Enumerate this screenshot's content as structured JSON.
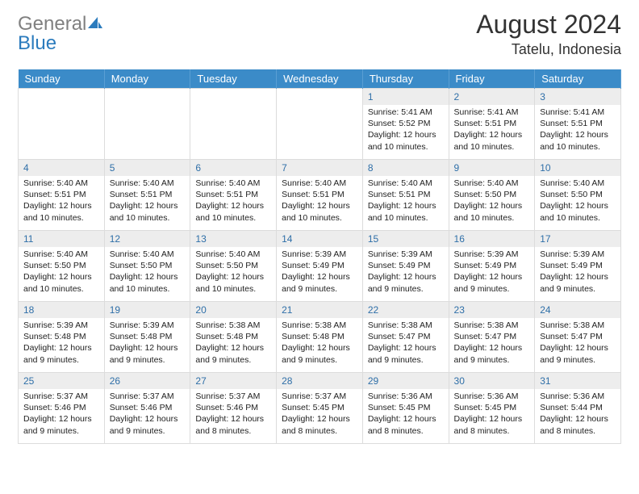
{
  "logo": {
    "textGray": "General",
    "textBlue": "Blue"
  },
  "header": {
    "title": "August 2024",
    "location": "Tatelu, Indonesia"
  },
  "colors": {
    "headerBg": "#3b8bc8",
    "headerText": "#ffffff",
    "dayNumBg": "#ededed",
    "dayNumText": "#2f6fa8",
    "border": "#dcdcdc",
    "bodyText": "#222222"
  },
  "dayNames": [
    "Sunday",
    "Monday",
    "Tuesday",
    "Wednesday",
    "Thursday",
    "Friday",
    "Saturday"
  ],
  "weeks": [
    [
      null,
      null,
      null,
      null,
      {
        "n": "1",
        "sr": "5:41 AM",
        "ss": "5:52 PM",
        "dl": "12 hours and 10 minutes."
      },
      {
        "n": "2",
        "sr": "5:41 AM",
        "ss": "5:51 PM",
        "dl": "12 hours and 10 minutes."
      },
      {
        "n": "3",
        "sr": "5:41 AM",
        "ss": "5:51 PM",
        "dl": "12 hours and 10 minutes."
      }
    ],
    [
      {
        "n": "4",
        "sr": "5:40 AM",
        "ss": "5:51 PM",
        "dl": "12 hours and 10 minutes."
      },
      {
        "n": "5",
        "sr": "5:40 AM",
        "ss": "5:51 PM",
        "dl": "12 hours and 10 minutes."
      },
      {
        "n": "6",
        "sr": "5:40 AM",
        "ss": "5:51 PM",
        "dl": "12 hours and 10 minutes."
      },
      {
        "n": "7",
        "sr": "5:40 AM",
        "ss": "5:51 PM",
        "dl": "12 hours and 10 minutes."
      },
      {
        "n": "8",
        "sr": "5:40 AM",
        "ss": "5:51 PM",
        "dl": "12 hours and 10 minutes."
      },
      {
        "n": "9",
        "sr": "5:40 AM",
        "ss": "5:50 PM",
        "dl": "12 hours and 10 minutes."
      },
      {
        "n": "10",
        "sr": "5:40 AM",
        "ss": "5:50 PM",
        "dl": "12 hours and 10 minutes."
      }
    ],
    [
      {
        "n": "11",
        "sr": "5:40 AM",
        "ss": "5:50 PM",
        "dl": "12 hours and 10 minutes."
      },
      {
        "n": "12",
        "sr": "5:40 AM",
        "ss": "5:50 PM",
        "dl": "12 hours and 10 minutes."
      },
      {
        "n": "13",
        "sr": "5:40 AM",
        "ss": "5:50 PM",
        "dl": "12 hours and 10 minutes."
      },
      {
        "n": "14",
        "sr": "5:39 AM",
        "ss": "5:49 PM",
        "dl": "12 hours and 9 minutes."
      },
      {
        "n": "15",
        "sr": "5:39 AM",
        "ss": "5:49 PM",
        "dl": "12 hours and 9 minutes."
      },
      {
        "n": "16",
        "sr": "5:39 AM",
        "ss": "5:49 PM",
        "dl": "12 hours and 9 minutes."
      },
      {
        "n": "17",
        "sr": "5:39 AM",
        "ss": "5:49 PM",
        "dl": "12 hours and 9 minutes."
      }
    ],
    [
      {
        "n": "18",
        "sr": "5:39 AM",
        "ss": "5:48 PM",
        "dl": "12 hours and 9 minutes."
      },
      {
        "n": "19",
        "sr": "5:39 AM",
        "ss": "5:48 PM",
        "dl": "12 hours and 9 minutes."
      },
      {
        "n": "20",
        "sr": "5:38 AM",
        "ss": "5:48 PM",
        "dl": "12 hours and 9 minutes."
      },
      {
        "n": "21",
        "sr": "5:38 AM",
        "ss": "5:48 PM",
        "dl": "12 hours and 9 minutes."
      },
      {
        "n": "22",
        "sr": "5:38 AM",
        "ss": "5:47 PM",
        "dl": "12 hours and 9 minutes."
      },
      {
        "n": "23",
        "sr": "5:38 AM",
        "ss": "5:47 PM",
        "dl": "12 hours and 9 minutes."
      },
      {
        "n": "24",
        "sr": "5:38 AM",
        "ss": "5:47 PM",
        "dl": "12 hours and 9 minutes."
      }
    ],
    [
      {
        "n": "25",
        "sr": "5:37 AM",
        "ss": "5:46 PM",
        "dl": "12 hours and 9 minutes."
      },
      {
        "n": "26",
        "sr": "5:37 AM",
        "ss": "5:46 PM",
        "dl": "12 hours and 9 minutes."
      },
      {
        "n": "27",
        "sr": "5:37 AM",
        "ss": "5:46 PM",
        "dl": "12 hours and 8 minutes."
      },
      {
        "n": "28",
        "sr": "5:37 AM",
        "ss": "5:45 PM",
        "dl": "12 hours and 8 minutes."
      },
      {
        "n": "29",
        "sr": "5:36 AM",
        "ss": "5:45 PM",
        "dl": "12 hours and 8 minutes."
      },
      {
        "n": "30",
        "sr": "5:36 AM",
        "ss": "5:45 PM",
        "dl": "12 hours and 8 minutes."
      },
      {
        "n": "31",
        "sr": "5:36 AM",
        "ss": "5:44 PM",
        "dl": "12 hours and 8 minutes."
      }
    ]
  ],
  "labels": {
    "sunrise": "Sunrise: ",
    "sunset": "Sunset: ",
    "daylight": "Daylight: "
  }
}
